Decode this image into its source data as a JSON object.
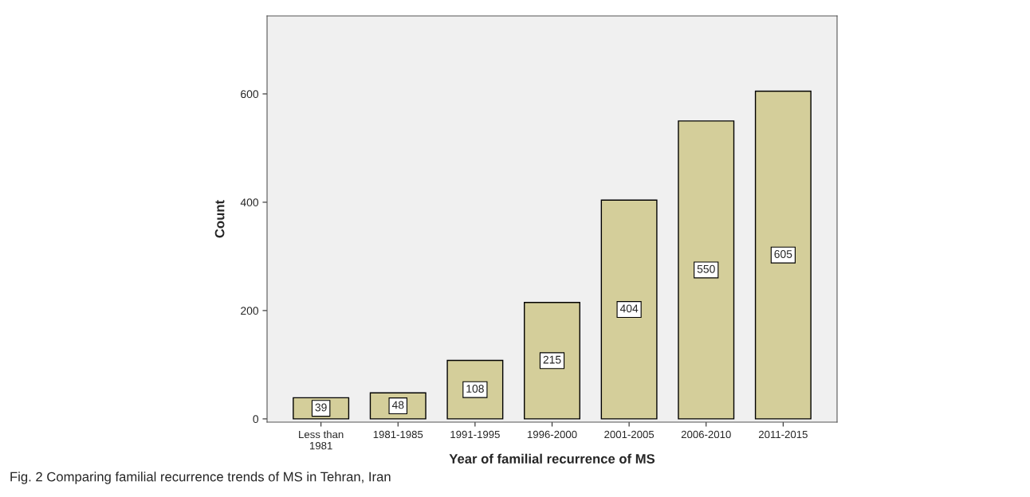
{
  "chart_data": {
    "type": "bar",
    "categories": [
      "Less than\n1981",
      "1981-1985",
      "1991-1995",
      "1996-2000",
      "2001-2005",
      "2006-2010",
      "2011-2015"
    ],
    "values": [
      39,
      48,
      108,
      215,
      404,
      550,
      605
    ],
    "color": "#d4ce9a",
    "xlabel": "Year of familial recurrence of MS",
    "ylabel": "Count",
    "ylim": [
      -6,
      744
    ],
    "yticks": [
      0,
      200,
      400,
      600
    ],
    "grid": false,
    "data_labels": true,
    "annotations": [
      "Fig. 2 Comparing familial recurrence trends of MS in Tehran, Iran"
    ]
  }
}
